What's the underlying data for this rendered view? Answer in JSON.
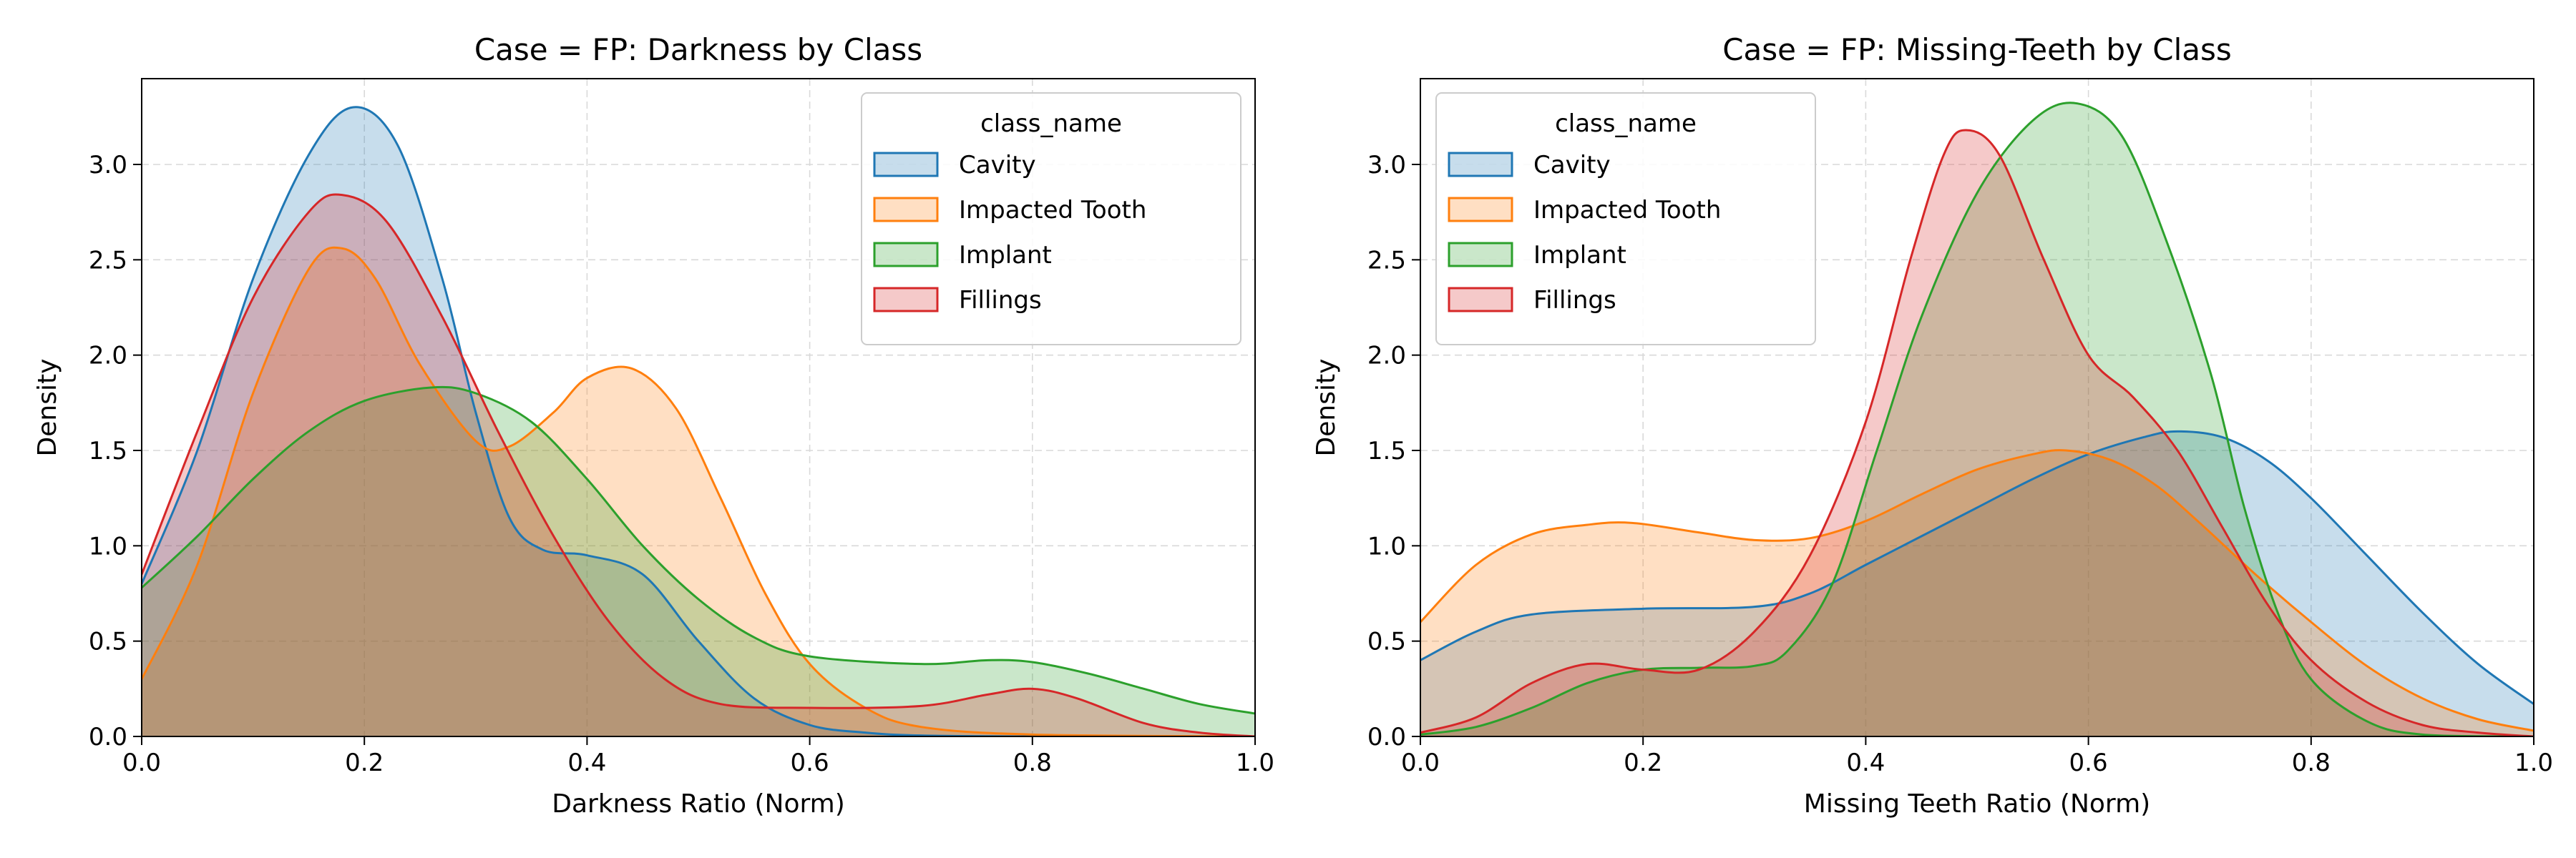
{
  "chart_data": [
    {
      "type": "area",
      "title": "Case = FP: Darkness by Class",
      "xlabel": "Darkness Ratio (Norm)",
      "ylabel": "Density",
      "xlim": [
        0,
        1
      ],
      "ylim": [
        0,
        3.45
      ],
      "xticks": [
        "0.0",
        "0.2",
        "0.4",
        "0.6",
        "0.8",
        "1.0"
      ],
      "yticks": [
        "0.0",
        "0.5",
        "1.0",
        "1.5",
        "2.0",
        "2.5",
        "3.0"
      ],
      "grid": true,
      "legend": {
        "title": "class_name",
        "placement": "top-right"
      },
      "series": [
        {
          "name": "Cavity",
          "color": "#1f77b4",
          "points": [
            [
              0,
              0.8
            ],
            [
              0.05,
              1.5
            ],
            [
              0.1,
              2.4
            ],
            [
              0.15,
              3.05
            ],
            [
              0.19,
              3.3
            ],
            [
              0.23,
              3.1
            ],
            [
              0.27,
              2.4
            ],
            [
              0.3,
              1.7
            ],
            [
              0.33,
              1.15
            ],
            [
              0.36,
              0.98
            ],
            [
              0.4,
              0.95
            ],
            [
              0.45,
              0.85
            ],
            [
              0.5,
              0.5
            ],
            [
              0.55,
              0.2
            ],
            [
              0.6,
              0.06
            ],
            [
              0.65,
              0.02
            ],
            [
              0.7,
              0.005
            ],
            [
              0.8,
              0
            ],
            [
              1.0,
              0
            ]
          ]
        },
        {
          "name": "Impacted Tooth",
          "color": "#ff7f0e",
          "points": [
            [
              0,
              0.3
            ],
            [
              0.05,
              0.9
            ],
            [
              0.1,
              1.8
            ],
            [
              0.15,
              2.45
            ],
            [
              0.18,
              2.56
            ],
            [
              0.21,
              2.4
            ],
            [
              0.25,
              1.95
            ],
            [
              0.3,
              1.55
            ],
            [
              0.33,
              1.52
            ],
            [
              0.37,
              1.7
            ],
            [
              0.4,
              1.88
            ],
            [
              0.44,
              1.93
            ],
            [
              0.48,
              1.72
            ],
            [
              0.52,
              1.25
            ],
            [
              0.56,
              0.75
            ],
            [
              0.6,
              0.38
            ],
            [
              0.65,
              0.15
            ],
            [
              0.7,
              0.05
            ],
            [
              0.8,
              0.01
            ],
            [
              1.0,
              0
            ]
          ]
        },
        {
          "name": "Implant",
          "color": "#2ca02c",
          "points": [
            [
              0,
              0.78
            ],
            [
              0.05,
              1.05
            ],
            [
              0.1,
              1.35
            ],
            [
              0.15,
              1.6
            ],
            [
              0.2,
              1.76
            ],
            [
              0.26,
              1.83
            ],
            [
              0.3,
              1.8
            ],
            [
              0.35,
              1.65
            ],
            [
              0.4,
              1.35
            ],
            [
              0.45,
              1.0
            ],
            [
              0.5,
              0.72
            ],
            [
              0.55,
              0.52
            ],
            [
              0.6,
              0.42
            ],
            [
              0.7,
              0.38
            ],
            [
              0.76,
              0.4
            ],
            [
              0.8,
              0.39
            ],
            [
              0.85,
              0.33
            ],
            [
              0.9,
              0.25
            ],
            [
              0.95,
              0.17
            ],
            [
              1.0,
              0.12
            ]
          ]
        },
        {
          "name": "Fillings",
          "color": "#d62728",
          "points": [
            [
              0,
              0.85
            ],
            [
              0.05,
              1.6
            ],
            [
              0.1,
              2.3
            ],
            [
              0.15,
              2.75
            ],
            [
              0.18,
              2.84
            ],
            [
              0.22,
              2.7
            ],
            [
              0.27,
              2.2
            ],
            [
              0.32,
              1.6
            ],
            [
              0.37,
              1.05
            ],
            [
              0.42,
              0.6
            ],
            [
              0.47,
              0.3
            ],
            [
              0.52,
              0.17
            ],
            [
              0.6,
              0.15
            ],
            [
              0.7,
              0.16
            ],
            [
              0.76,
              0.22
            ],
            [
              0.8,
              0.25
            ],
            [
              0.84,
              0.2
            ],
            [
              0.9,
              0.07
            ],
            [
              0.95,
              0.02
            ],
            [
              1.0,
              0
            ]
          ]
        }
      ]
    },
    {
      "type": "area",
      "title": "Case = FP: Missing-Teeth by Class",
      "xlabel": "Missing Teeth Ratio (Norm)",
      "ylabel": "Density",
      "xlim": [
        0,
        1
      ],
      "ylim": [
        0,
        3.45
      ],
      "xticks": [
        "0.0",
        "0.2",
        "0.4",
        "0.6",
        "0.8",
        "1.0"
      ],
      "yticks": [
        "0.0",
        "0.5",
        "1.0",
        "1.5",
        "2.0",
        "2.5",
        "3.0"
      ],
      "grid": true,
      "legend": {
        "title": "class_name",
        "placement": "top-left"
      },
      "series": [
        {
          "name": "Cavity",
          "color": "#1f77b4",
          "points": [
            [
              0,
              0.4
            ],
            [
              0.05,
              0.55
            ],
            [
              0.1,
              0.64
            ],
            [
              0.2,
              0.67
            ],
            [
              0.3,
              0.68
            ],
            [
              0.35,
              0.75
            ],
            [
              0.4,
              0.9
            ],
            [
              0.45,
              1.05
            ],
            [
              0.5,
              1.2
            ],
            [
              0.55,
              1.35
            ],
            [
              0.6,
              1.48
            ],
            [
              0.65,
              1.57
            ],
            [
              0.68,
              1.6
            ],
            [
              0.72,
              1.57
            ],
            [
              0.76,
              1.45
            ],
            [
              0.8,
              1.25
            ],
            [
              0.85,
              0.95
            ],
            [
              0.9,
              0.65
            ],
            [
              0.95,
              0.38
            ],
            [
              1.0,
              0.17
            ]
          ]
        },
        {
          "name": "Impacted Tooth",
          "color": "#ff7f0e",
          "points": [
            [
              0,
              0.6
            ],
            [
              0.05,
              0.9
            ],
            [
              0.1,
              1.06
            ],
            [
              0.15,
              1.11
            ],
            [
              0.19,
              1.12
            ],
            [
              0.25,
              1.07
            ],
            [
              0.3,
              1.03
            ],
            [
              0.35,
              1.04
            ],
            [
              0.4,
              1.13
            ],
            [
              0.45,
              1.27
            ],
            [
              0.5,
              1.4
            ],
            [
              0.55,
              1.48
            ],
            [
              0.58,
              1.5
            ],
            [
              0.62,
              1.45
            ],
            [
              0.66,
              1.32
            ],
            [
              0.7,
              1.12
            ],
            [
              0.75,
              0.85
            ],
            [
              0.8,
              0.6
            ],
            [
              0.85,
              0.37
            ],
            [
              0.9,
              0.2
            ],
            [
              0.95,
              0.09
            ],
            [
              1.0,
              0.03
            ]
          ]
        },
        {
          "name": "Implant",
          "color": "#2ca02c",
          "points": [
            [
              0,
              0.01
            ],
            [
              0.05,
              0.05
            ],
            [
              0.1,
              0.15
            ],
            [
              0.15,
              0.28
            ],
            [
              0.2,
              0.35
            ],
            [
              0.25,
              0.36
            ],
            [
              0.3,
              0.37
            ],
            [
              0.33,
              0.45
            ],
            [
              0.37,
              0.8
            ],
            [
              0.41,
              1.5
            ],
            [
              0.45,
              2.2
            ],
            [
              0.5,
              2.85
            ],
            [
              0.55,
              3.23
            ],
            [
              0.59,
              3.32
            ],
            [
              0.63,
              3.15
            ],
            [
              0.67,
              2.6
            ],
            [
              0.71,
              1.9
            ],
            [
              0.74,
              1.2
            ],
            [
              0.77,
              0.65
            ],
            [
              0.8,
              0.3
            ],
            [
              0.85,
              0.08
            ],
            [
              0.9,
              0.01
            ],
            [
              1.0,
              0
            ]
          ]
        },
        {
          "name": "Fillings",
          "color": "#d62728",
          "points": [
            [
              0,
              0.02
            ],
            [
              0.05,
              0.1
            ],
            [
              0.1,
              0.28
            ],
            [
              0.15,
              0.38
            ],
            [
              0.2,
              0.35
            ],
            [
              0.25,
              0.35
            ],
            [
              0.3,
              0.55
            ],
            [
              0.35,
              0.95
            ],
            [
              0.4,
              1.65
            ],
            [
              0.44,
              2.5
            ],
            [
              0.47,
              3.05
            ],
            [
              0.49,
              3.18
            ],
            [
              0.52,
              3.05
            ],
            [
              0.56,
              2.5
            ],
            [
              0.6,
              2.0
            ],
            [
              0.64,
              1.78
            ],
            [
              0.68,
              1.5
            ],
            [
              0.72,
              1.1
            ],
            [
              0.76,
              0.7
            ],
            [
              0.8,
              0.4
            ],
            [
              0.85,
              0.18
            ],
            [
              0.9,
              0.06
            ],
            [
              0.95,
              0.02
            ],
            [
              1.0,
              0
            ]
          ]
        }
      ]
    }
  ]
}
